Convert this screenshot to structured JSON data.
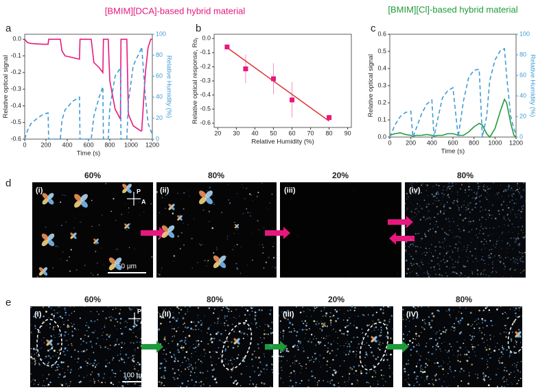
{
  "figure": {
    "title_left": "[BMIM][DCA]-based hybrid material",
    "title_right": "[BMIM][Cl]-based hybrid material",
    "panel_letters": [
      "a",
      "b",
      "c",
      "d",
      "e"
    ],
    "d": {
      "humidity": [
        "60%",
        "80%",
        "20%",
        "80%"
      ],
      "labels": [
        "(i)",
        "(ii)",
        "(iii)",
        "(iv)"
      ],
      "scale": "50 µm",
      "polarizer": "P",
      "analyzer": "A"
    },
    "e": {
      "humidity": [
        "60%",
        "80%",
        "20%",
        "80%"
      ],
      "labels": [
        "(I)",
        "(II)",
        "(III)",
        "(IV)"
      ],
      "scale": "100 µm",
      "polarizer": "P",
      "analyzer": "A"
    }
  },
  "chart_data": [
    {
      "type": "line",
      "x": [
        0,
        25,
        60,
        120,
        180,
        220,
        225,
        300,
        335,
        350,
        380,
        450,
        515,
        520,
        600,
        625,
        650,
        700,
        735,
        740,
        785,
        800,
        850,
        900,
        905,
        960,
        975,
        1020,
        1090,
        1100,
        1135,
        1160,
        1185,
        1200
      ],
      "xlim": [
        0,
        1200
      ],
      "xticks": [
        0,
        200,
        400,
        600,
        800,
        1000,
        1200
      ],
      "ylim": [
        -0.6,
        0.03
      ],
      "yticks": [
        {
          "value": 0,
          "label": "0.0"
        },
        -0.1,
        -0.2,
        -0.3,
        -0.4,
        -0.5,
        -0.6
      ],
      "y2lim": [
        0,
        100
      ],
      "y2ticks": [
        0,
        20,
        40,
        60,
        80,
        100
      ],
      "xlabel": "Time (s)",
      "ylabel": "Relative optical signal",
      "y2label": "Relative Humidity (%)",
      "series": [
        {
          "color": "#e8177d",
          "values": [
            0,
            -0.02,
            -0.025,
            -0.028,
            -0.03,
            -0.03,
            0,
            0,
            0,
            -0.07,
            -0.1,
            -0.11,
            -0.12,
            0,
            0,
            0,
            -0.14,
            -0.17,
            -0.2,
            0,
            0,
            -0.25,
            -0.42,
            -0.48,
            0,
            0,
            -0.45,
            -0.52,
            -0.55,
            -0.55,
            -0.2,
            -0.05,
            0,
            0
          ]
        },
        {
          "color": "#3d9bd6",
          "axis": "y2",
          "dashed": true,
          "values": [
            0,
            8,
            15,
            20,
            24,
            25,
            0,
            0,
            0,
            18,
            28,
            36,
            40,
            0,
            0,
            0,
            22,
            40,
            50,
            0,
            0,
            30,
            60,
            68,
            0,
            0,
            35,
            70,
            85,
            88,
            40,
            15,
            8,
            5
          ]
        }
      ]
    },
    {
      "type": "scatter",
      "x": [
        25,
        35,
        50,
        60,
        80
      ],
      "xlim": [
        18,
        92
      ],
      "xticks": [
        20,
        30,
        40,
        50,
        60,
        70,
        80,
        90
      ],
      "ylim": [
        -0.63,
        0.03
      ],
      "yticks": [
        {
          "value": 0,
          "label": "0.0"
        },
        -0.1,
        -0.2,
        -0.3,
        -0.4,
        -0.5,
        -0.6
      ],
      "xlabel": "Relative Humidity (%)",
      "ylabel": "Relative optical response, Ro",
      "ylabel_sub": "r",
      "series": [
        {
          "color": "#e8177d",
          "values": [
            -0.06,
            -0.215,
            -0.285,
            -0.435,
            -0.56
          ],
          "errors": [
            0.012,
            0.1,
            0.11,
            0.125,
            0.02
          ]
        }
      ],
      "fit": {
        "color": "#e02020",
        "x": [
          25,
          80
        ],
        "values": [
          -0.065,
          -0.585
        ]
      }
    },
    {
      "type": "line",
      "x": [
        0,
        50,
        100,
        150,
        200,
        220,
        250,
        300,
        350,
        400,
        420,
        450,
        500,
        550,
        600,
        650,
        700,
        750,
        800,
        850,
        880,
        920,
        950,
        1000,
        1050,
        1090,
        1110,
        1150,
        1180,
        1200
      ],
      "xlim": [
        0,
        1200
      ],
      "xticks": [
        0,
        200,
        400,
        600,
        800,
        1000,
        1200
      ],
      "ylim": [
        0,
        0.6
      ],
      "yticks": [
        {
          "value": 0,
          "label": "0.0"
        },
        0.1,
        0.2,
        0.3,
        0.4,
        0.5,
        0.6
      ],
      "y2lim": [
        0,
        100
      ],
      "y2ticks": [
        0,
        20,
        40,
        60,
        80,
        100
      ],
      "xlabel": "Time (s)",
      "ylabel": "Relative optical signal",
      "y2label": "Relative Humidity (%)",
      "series": [
        {
          "color": "#1e9a3a",
          "values": [
            0.01,
            0.02,
            0.025,
            0.015,
            0.01,
            0.005,
            0.01,
            0.01,
            0.015,
            0.01,
            0.005,
            0.01,
            0.01,
            0.02,
            0.02,
            0.01,
            0.01,
            0.03,
            0.06,
            0.08,
            0.07,
            0.02,
            0,
            0.05,
            0.15,
            0.22,
            0.2,
            0.08,
            0.01,
            0
          ]
        },
        {
          "color": "#3d9bd6",
          "axis": "y2",
          "dashed": true,
          "values": [
            0,
            12,
            20,
            24,
            25,
            0,
            8,
            22,
            32,
            36,
            0,
            15,
            38,
            45,
            48,
            0,
            35,
            58,
            65,
            66,
            0,
            20,
            55,
            75,
            84,
            86,
            60,
            20,
            8,
            3
          ]
        }
      ]
    }
  ]
}
